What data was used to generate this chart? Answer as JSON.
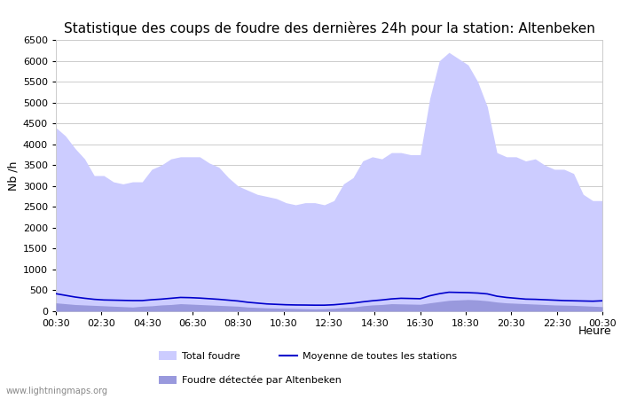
{
  "title": "Statistique des coups de foudre des dernières 24h pour la station: Altenbeken",
  "xlabel": "Heure",
  "ylabel": "Nb /h",
  "xlim": [
    0,
    48
  ],
  "ylim": [
    0,
    6500
  ],
  "yticks": [
    0,
    500,
    1000,
    1500,
    2000,
    2500,
    3000,
    3500,
    4000,
    4500,
    5000,
    5500,
    6000,
    6500
  ],
  "xtick_labels": [
    "00:30",
    "02:30",
    "04:30",
    "06:30",
    "08:30",
    "10:30",
    "12:30",
    "14:30",
    "16:30",
    "18:30",
    "20:30",
    "22:30",
    "00:30"
  ],
  "xtick_positions": [
    0,
    4,
    8,
    12,
    16,
    20,
    24,
    28,
    32,
    36,
    40,
    44,
    48
  ],
  "fill_color_total": "#ccccff",
  "fill_color_station": "#9999dd",
  "line_color": "#0000cc",
  "background_color": "#ffffff",
  "grid_color": "#cccccc",
  "title_fontsize": 11,
  "watermark": "www.lightningmaps.org",
  "total_foudre": [
    4400,
    4200,
    3900,
    3650,
    3250,
    3250,
    3100,
    3050,
    3100,
    3100,
    3400,
    3500,
    3650,
    3700,
    3700,
    3700,
    3550,
    3450,
    3200,
    3000,
    2900,
    2800,
    2750,
    2700,
    2600,
    2550,
    2600,
    2600,
    2550,
    2650,
    3050,
    3200,
    3600,
    3700,
    3650,
    3800,
    3800,
    3750,
    3750,
    5100,
    6000,
    6200,
    6050,
    5900,
    5500,
    4900,
    3800,
    3700,
    3700,
    3600,
    3650,
    3500,
    3400,
    3400,
    3300,
    2800,
    2650,
    2650
  ],
  "station_foudre": [
    200,
    180,
    160,
    150,
    140,
    130,
    120,
    110,
    100,
    120,
    130,
    150,
    160,
    180,
    170,
    160,
    150,
    140,
    130,
    120,
    100,
    90,
    80,
    75,
    70,
    65,
    60,
    55,
    60,
    70,
    90,
    100,
    130,
    150,
    160,
    180,
    175,
    170,
    165,
    200,
    230,
    260,
    270,
    280,
    270,
    250,
    220,
    200,
    190,
    180,
    170,
    160,
    150,
    145,
    140,
    130,
    120,
    110
  ],
  "mean_line": [
    420,
    380,
    340,
    310,
    285,
    270,
    265,
    260,
    255,
    255,
    275,
    290,
    310,
    330,
    325,
    315,
    300,
    285,
    265,
    245,
    215,
    195,
    175,
    165,
    155,
    150,
    148,
    145,
    145,
    155,
    175,
    195,
    225,
    250,
    270,
    295,
    310,
    305,
    300,
    370,
    420,
    455,
    450,
    445,
    435,
    415,
    360,
    330,
    310,
    290,
    285,
    275,
    265,
    255,
    250,
    245,
    240,
    250
  ],
  "legend_total": "Total foudre",
  "legend_mean": "Moyenne de toutes les stations",
  "legend_station": "Foudre détectée par Altenbeken"
}
